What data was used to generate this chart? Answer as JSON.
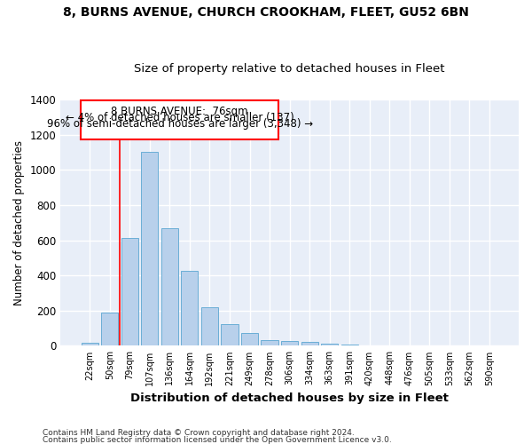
{
  "title1": "8, BURNS AVENUE, CHURCH CROOKHAM, FLEET, GU52 6BN",
  "title2": "Size of property relative to detached houses in Fleet",
  "xlabel": "Distribution of detached houses by size in Fleet",
  "ylabel": "Number of detached properties",
  "bar_color": "#b8d0eb",
  "bar_edge_color": "#6aaed6",
  "bg_color": "#e8eef8",
  "grid_color": "#ffffff",
  "categories": [
    "22sqm",
    "50sqm",
    "79sqm",
    "107sqm",
    "136sqm",
    "164sqm",
    "192sqm",
    "221sqm",
    "249sqm",
    "278sqm",
    "306sqm",
    "334sqm",
    "363sqm",
    "391sqm",
    "420sqm",
    "448sqm",
    "476sqm",
    "505sqm",
    "533sqm",
    "562sqm",
    "590sqm"
  ],
  "values": [
    15,
    190,
    615,
    1100,
    670,
    425,
    220,
    125,
    75,
    33,
    28,
    20,
    10,
    5,
    3,
    2,
    1,
    1,
    1,
    1,
    1
  ],
  "ylim": [
    0,
    1400
  ],
  "yticks": [
    0,
    200,
    400,
    600,
    800,
    1000,
    1200,
    1400
  ],
  "vline_x": 2,
  "annotation_text_line1": "8 BURNS AVENUE:  76sqm",
  "annotation_text_line2": "← 4% of detached houses are smaller (137)",
  "annotation_text_line3": "96% of semi-detached houses are larger (3,348) →",
  "footnote1": "Contains HM Land Registry data © Crown copyright and database right 2024.",
  "footnote2": "Contains public sector information licensed under the Open Government Licence v3.0."
}
